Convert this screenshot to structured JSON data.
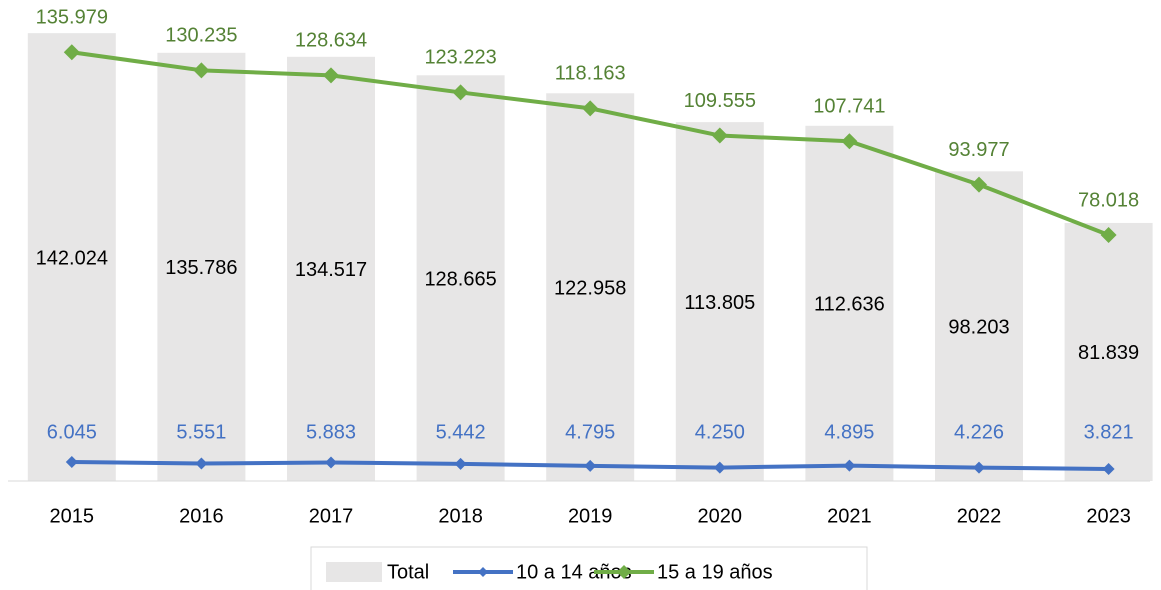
{
  "chart_data": {
    "type": "bar",
    "categories": [
      "2015",
      "2016",
      "2017",
      "2018",
      "2019",
      "2020",
      "2021",
      "2022",
      "2023"
    ],
    "ylim": [
      0,
      150000
    ],
    "legend": "bottom",
    "series": [
      {
        "name": "Total",
        "type": "bar",
        "color": "#e7e6e6",
        "label_color": "#000000",
        "values": [
          142024,
          135786,
          134517,
          128665,
          122958,
          113805,
          112636,
          98203,
          81839
        ],
        "value_labels": [
          "142.024",
          "135.786",
          "134.517",
          "128.665",
          "122.958",
          "113.805",
          "112.636",
          "98.203",
          "81.839"
        ]
      },
      {
        "name": "10 a 14 años",
        "type": "line",
        "color": "#4472c4",
        "label_color": "#4472c4",
        "values": [
          6045,
          5551,
          5883,
          5442,
          4795,
          4250,
          4895,
          4226,
          3821
        ],
        "value_labels": [
          "6.045",
          "5.551",
          "5.883",
          "5.442",
          "4.795",
          "4.250",
          "4.895",
          "4.226",
          "3.821"
        ]
      },
      {
        "name": "15 a 19 años",
        "type": "line",
        "color": "#70ad47",
        "label_color": "#548235",
        "values": [
          135979,
          130235,
          128634,
          123223,
          118163,
          109555,
          107741,
          93977,
          78018
        ],
        "value_labels": [
          "135.979",
          "130.235",
          "128.634",
          "123.223",
          "118.163",
          "109.555",
          "107.741",
          "93.977",
          "78.018"
        ]
      }
    ]
  }
}
